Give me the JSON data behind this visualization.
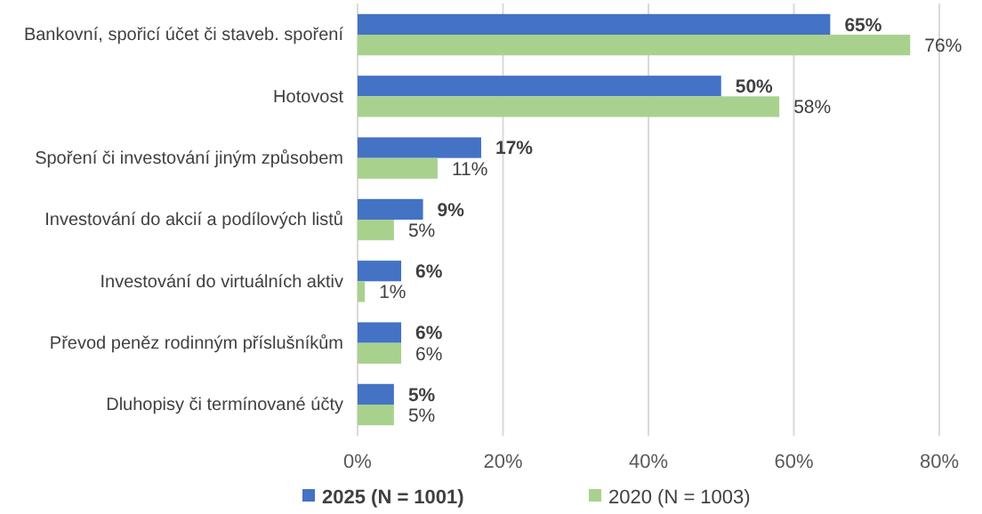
{
  "chart_data": {
    "type": "bar",
    "orientation": "horizontal",
    "categories": [
      "Bankovní, spořicí účet či staveb. spoření",
      "Hotovost",
      "Spoření či investování jiným způsobem",
      "Investování do akcií a podílových listů",
      "Investování do virtuálních aktiv",
      "Převod peněz rodinným příslušníkům",
      "Dluhopisy či termínované účty"
    ],
    "series": [
      {
        "name": "2025 (N = 1001)",
        "color": "#4472c4",
        "values": [
          65,
          50,
          17,
          9,
          6,
          6,
          5
        ],
        "value_labels": [
          "65%",
          "50%",
          "17%",
          "9%",
          "6%",
          "6%",
          "5%"
        ]
      },
      {
        "name": "2020 (N = 1003)",
        "color": "#a9d18e",
        "values": [
          76,
          58,
          11,
          5,
          1,
          6,
          5
        ],
        "value_labels": [
          "76%",
          "58%",
          "11%",
          "5%",
          "1%",
          "6%",
          "5%"
        ]
      }
    ],
    "xlim": [
      0,
      80
    ],
    "xticks": [
      {
        "value": 0,
        "label": "0%"
      },
      {
        "value": 20,
        "label": "20%"
      },
      {
        "value": 40,
        "label": "40%"
      },
      {
        "value": 60,
        "label": "60%"
      },
      {
        "value": 80,
        "label": "80%"
      }
    ],
    "grid": "x",
    "legend": "bottom"
  }
}
